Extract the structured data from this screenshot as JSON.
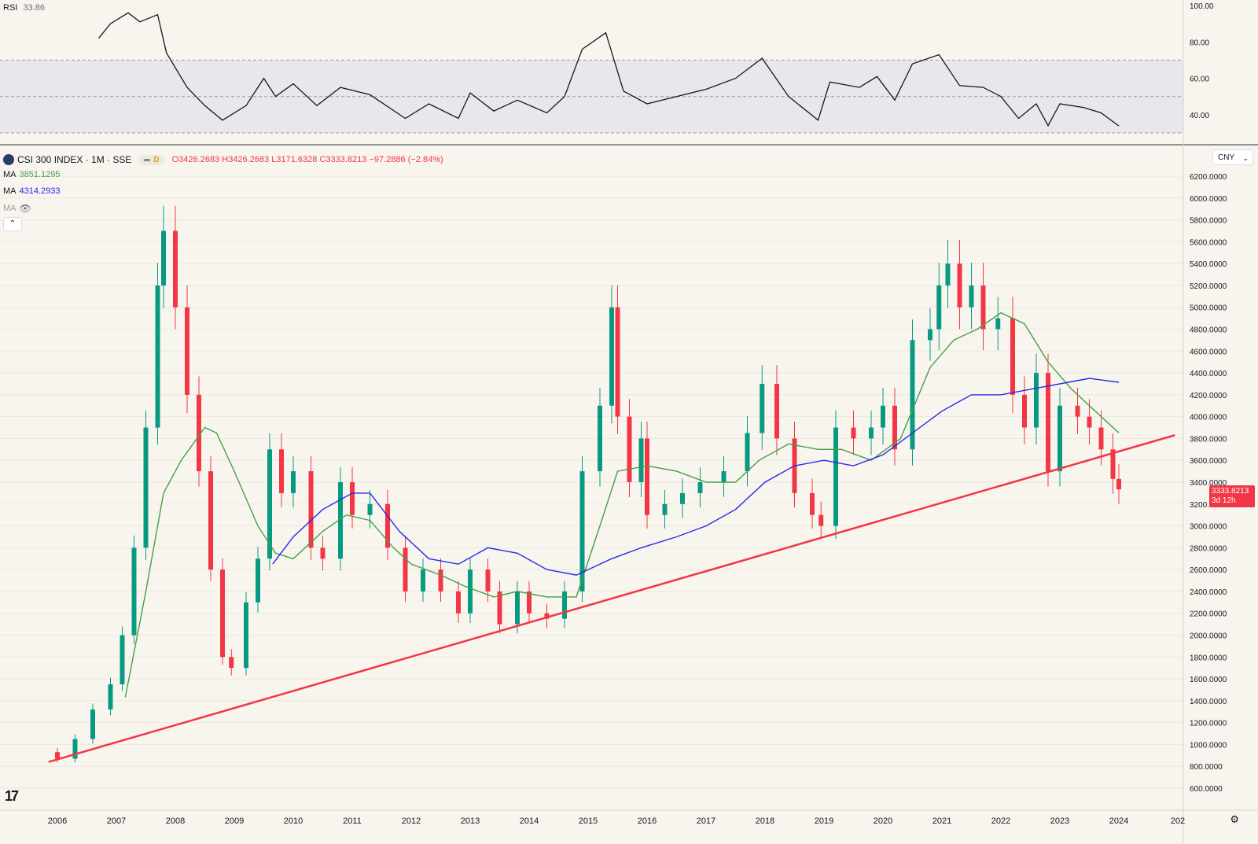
{
  "rsi": {
    "label": "RSI",
    "value": "33.86",
    "ticks": [
      "100.00",
      "80.00",
      "60.00",
      "40.00"
    ],
    "band_color": "#e6e2ec"
  },
  "header": {
    "symbol": "CSI 300 INDEX · 1M · SSE",
    "open": "O3426.2683",
    "high": "H3426.2683",
    "low": "L3171.6328",
    "close": "C3333.8213",
    "change": "−97.2886 (−2.84%)",
    "session_badge": "D"
  },
  "ma": [
    {
      "label": "MA",
      "value": "3851.1295",
      "color": "#43a047"
    },
    {
      "label": "MA",
      "value": "4314.2933",
      "color": "#2929e8"
    },
    {
      "label": "MA",
      "value": "",
      "color": "#9c9c9c"
    }
  ],
  "currency": {
    "label": "CNY"
  },
  "collapse_label": "⌃",
  "price_tag": {
    "value": "3333.8213",
    "countdown": "3d 12h"
  },
  "tv_logo": "17",
  "colors": {
    "up": "#089981",
    "down": "#f23645",
    "trendline": "#f23645",
    "rsi_line": "#131722"
  },
  "chart_data": {
    "type": "candlestick",
    "y_ticks": [
      "6200.0000",
      "6000.0000",
      "5800.0000",
      "5600.0000",
      "5400.0000",
      "5200.0000",
      "5000.0000",
      "4800.0000",
      "4600.0000",
      "4400.0000",
      "4200.0000",
      "4000.0000",
      "3800.0000",
      "3600.0000",
      "3400.0000",
      "3200.0000",
      "3000.0000",
      "2800.0000",
      "2600.0000",
      "2400.0000",
      "2200.0000",
      "2000.0000",
      "1800.0000",
      "1600.0000",
      "1400.0000",
      "1200.0000",
      "1000.0000",
      "800.0000",
      "600.0000"
    ],
    "ylim": [
      600,
      6200
    ],
    "x_ticks": [
      "2006",
      "2007",
      "2008",
      "2009",
      "2010",
      "2011",
      "2012",
      "2013",
      "2014",
      "2015",
      "2016",
      "2017",
      "2018",
      "2019",
      "2020",
      "2021",
      "2022",
      "2023",
      "2024",
      "202"
    ],
    "closes": [
      {
        "year": 2005.8,
        "close": 930
      },
      {
        "year": 2006.0,
        "close": 870
      },
      {
        "year": 2006.3,
        "close": 1050
      },
      {
        "year": 2006.6,
        "close": 1320
      },
      {
        "year": 2006.9,
        "close": 1550
      },
      {
        "year": 2007.1,
        "close": 2000
      },
      {
        "year": 2007.3,
        "close": 2800
      },
      {
        "year": 2007.5,
        "close": 3900
      },
      {
        "year": 2007.7,
        "close": 5200
      },
      {
        "year": 2007.8,
        "close": 5700
      },
      {
        "year": 2008.0,
        "close": 5000
      },
      {
        "year": 2008.2,
        "close": 4200
      },
      {
        "year": 2008.4,
        "close": 3500
      },
      {
        "year": 2008.6,
        "close": 2600
      },
      {
        "year": 2008.8,
        "close": 1800
      },
      {
        "year": 2008.95,
        "close": 1700
      },
      {
        "year": 2009.2,
        "close": 2300
      },
      {
        "year": 2009.4,
        "close": 2700
      },
      {
        "year": 2009.6,
        "close": 3700
      },
      {
        "year": 2009.8,
        "close": 3300
      },
      {
        "year": 2010.0,
        "close": 3500
      },
      {
        "year": 2010.3,
        "close": 2800
      },
      {
        "year": 2010.5,
        "close": 2700
      },
      {
        "year": 2010.8,
        "close": 3400
      },
      {
        "year": 2011.0,
        "close": 3100
      },
      {
        "year": 2011.3,
        "close": 3200
      },
      {
        "year": 2011.6,
        "close": 2800
      },
      {
        "year": 2011.9,
        "close": 2400
      },
      {
        "year": 2012.2,
        "close": 2600
      },
      {
        "year": 2012.5,
        "close": 2400
      },
      {
        "year": 2012.8,
        "close": 2200
      },
      {
        "year": 2013.0,
        "close": 2600
      },
      {
        "year": 2013.3,
        "close": 2400
      },
      {
        "year": 2013.5,
        "close": 2100
      },
      {
        "year": 2013.8,
        "close": 2400
      },
      {
        "year": 2014.0,
        "close": 2200
      },
      {
        "year": 2014.3,
        "close": 2150
      },
      {
        "year": 2014.6,
        "close": 2400
      },
      {
        "year": 2014.9,
        "close": 3500
      },
      {
        "year": 2015.2,
        "close": 4100
      },
      {
        "year": 2015.4,
        "close": 5000
      },
      {
        "year": 2015.5,
        "close": 4000
      },
      {
        "year": 2015.7,
        "close": 3400
      },
      {
        "year": 2015.9,
        "close": 3800
      },
      {
        "year": 2016.0,
        "close": 3100
      },
      {
        "year": 2016.3,
        "close": 3200
      },
      {
        "year": 2016.6,
        "close": 3300
      },
      {
        "year": 2016.9,
        "close": 3400
      },
      {
        "year": 2017.3,
        "close": 3500
      },
      {
        "year": 2017.7,
        "close": 3850
      },
      {
        "year": 2017.95,
        "close": 4300
      },
      {
        "year": 2018.2,
        "close": 3800
      },
      {
        "year": 2018.5,
        "close": 3300
      },
      {
        "year": 2018.8,
        "close": 3100
      },
      {
        "year": 2018.95,
        "close": 3000
      },
      {
        "year": 2019.2,
        "close": 3900
      },
      {
        "year": 2019.5,
        "close": 3800
      },
      {
        "year": 2019.8,
        "close": 3900
      },
      {
        "year": 2020.0,
        "close": 4100
      },
      {
        "year": 2020.2,
        "close": 3700
      },
      {
        "year": 2020.5,
        "close": 4700
      },
      {
        "year": 2020.8,
        "close": 4800
      },
      {
        "year": 2020.95,
        "close": 5200
      },
      {
        "year": 2021.1,
        "close": 5400
      },
      {
        "year": 2021.3,
        "close": 5000
      },
      {
        "year": 2021.5,
        "close": 5200
      },
      {
        "year": 2021.7,
        "close": 4800
      },
      {
        "year": 2021.95,
        "close": 4900
      },
      {
        "year": 2022.2,
        "close": 4200
      },
      {
        "year": 2022.4,
        "close": 3900
      },
      {
        "year": 2022.6,
        "close": 4400
      },
      {
        "year": 2022.8,
        "close": 3500
      },
      {
        "year": 2023.0,
        "close": 4100
      },
      {
        "year": 2023.3,
        "close": 4000
      },
      {
        "year": 2023.5,
        "close": 3900
      },
      {
        "year": 2023.7,
        "close": 3700
      },
      {
        "year": 2023.9,
        "close": 3430
      },
      {
        "year": 2024.0,
        "close": 3334
      }
    ],
    "ma_fast": [
      {
        "year": 2007.15,
        "value": 1430
      },
      {
        "year": 2007.5,
        "value": 2400
      },
      {
        "year": 2007.8,
        "value": 3300
      },
      {
        "year": 2008.1,
        "value": 3600
      },
      {
        "year": 2008.5,
        "value": 3900
      },
      {
        "year": 2008.7,
        "value": 3850
      },
      {
        "year": 2009.0,
        "value": 3500
      },
      {
        "year": 2009.4,
        "value": 3000
      },
      {
        "year": 2009.7,
        "value": 2750
      },
      {
        "year": 2010.0,
        "value": 2700
      },
      {
        "year": 2010.5,
        "value": 2950
      },
      {
        "year": 2010.9,
        "value": 3100
      },
      {
        "year": 2011.3,
        "value": 3050
      },
      {
        "year": 2011.7,
        "value": 2800
      },
      {
        "year": 2012.0,
        "value": 2650
      },
      {
        "year": 2012.5,
        "value": 2550
      },
      {
        "year": 2012.9,
        "value": 2450
      },
      {
        "year": 2013.4,
        "value": 2350
      },
      {
        "year": 2013.8,
        "value": 2400
      },
      {
        "year": 2014.3,
        "value": 2350
      },
      {
        "year": 2014.8,
        "value": 2350
      },
      {
        "year": 2015.2,
        "value": 3000
      },
      {
        "year": 2015.5,
        "value": 3500
      },
      {
        "year": 2016.0,
        "value": 3550
      },
      {
        "year": 2016.5,
        "value": 3500
      },
      {
        "year": 2017.0,
        "value": 3400
      },
      {
        "year": 2017.5,
        "value": 3400
      },
      {
        "year": 2017.9,
        "value": 3600
      },
      {
        "year": 2018.4,
        "value": 3750
      },
      {
        "year": 2018.9,
        "value": 3700
      },
      {
        "year": 2019.3,
        "value": 3700
      },
      {
        "year": 2019.8,
        "value": 3600
      },
      {
        "year": 2020.3,
        "value": 3800
      },
      {
        "year": 2020.8,
        "value": 4450
      },
      {
        "year": 2021.2,
        "value": 4700
      },
      {
        "year": 2021.6,
        "value": 4800
      },
      {
        "year": 2022.0,
        "value": 4950
      },
      {
        "year": 2022.4,
        "value": 4850
      },
      {
        "year": 2022.8,
        "value": 4500
      },
      {
        "year": 2023.2,
        "value": 4250
      },
      {
        "year": 2023.6,
        "value": 4050
      },
      {
        "year": 2024.0,
        "value": 3851
      }
    ],
    "ma_slow": [
      {
        "year": 2009.65,
        "value": 2650
      },
      {
        "year": 2010.0,
        "value": 2900
      },
      {
        "year": 2010.5,
        "value": 3150
      },
      {
        "year": 2011.0,
        "value": 3300
      },
      {
        "year": 2011.3,
        "value": 3300
      },
      {
        "year": 2011.8,
        "value": 2950
      },
      {
        "year": 2012.3,
        "value": 2700
      },
      {
        "year": 2012.8,
        "value": 2650
      },
      {
        "year": 2013.3,
        "value": 2800
      },
      {
        "year": 2013.8,
        "value": 2750
      },
      {
        "year": 2014.3,
        "value": 2600
      },
      {
        "year": 2014.8,
        "value": 2550
      },
      {
        "year": 2015.4,
        "value": 2700
      },
      {
        "year": 2015.9,
        "value": 2800
      },
      {
        "year": 2016.5,
        "value": 2900
      },
      {
        "year": 2017.0,
        "value": 3000
      },
      {
        "year": 2017.5,
        "value": 3150
      },
      {
        "year": 2018.0,
        "value": 3400
      },
      {
        "year": 2018.5,
        "value": 3550
      },
      {
        "year": 2019.0,
        "value": 3600
      },
      {
        "year": 2019.5,
        "value": 3550
      },
      {
        "year": 2020.0,
        "value": 3650
      },
      {
        "year": 2020.5,
        "value": 3850
      },
      {
        "year": 2021.0,
        "value": 4050
      },
      {
        "year": 2021.5,
        "value": 4200
      },
      {
        "year": 2022.0,
        "value": 4200
      },
      {
        "year": 2022.5,
        "value": 4250
      },
      {
        "year": 2023.0,
        "value": 4300
      },
      {
        "year": 2023.5,
        "value": 4350
      },
      {
        "year": 2024.0,
        "value": 4314
      }
    ],
    "trendline": [
      {
        "year": 2005.85,
        "value": 840
      },
      {
        "year": 2024.95,
        "value": 3830
      }
    ],
    "rsi_values": [
      {
        "year": 2006.7,
        "value": 82
      },
      {
        "year": 2006.9,
        "value": 90
      },
      {
        "year": 2007.2,
        "value": 96
      },
      {
        "year": 2007.4,
        "value": 91
      },
      {
        "year": 2007.7,
        "value": 95
      },
      {
        "year": 2007.85,
        "value": 74
      },
      {
        "year": 2008.2,
        "value": 55
      },
      {
        "year": 2008.5,
        "value": 45
      },
      {
        "year": 2008.8,
        "value": 37
      },
      {
        "year": 2009.2,
        "value": 45
      },
      {
        "year": 2009.5,
        "value": 60
      },
      {
        "year": 2009.7,
        "value": 50
      },
      {
        "year": 2010.0,
        "value": 57
      },
      {
        "year": 2010.4,
        "value": 45
      },
      {
        "year": 2010.8,
        "value": 55
      },
      {
        "year": 2011.3,
        "value": 51
      },
      {
        "year": 2011.9,
        "value": 38
      },
      {
        "year": 2012.3,
        "value": 46
      },
      {
        "year": 2012.8,
        "value": 38
      },
      {
        "year": 2013.0,
        "value": 52
      },
      {
        "year": 2013.4,
        "value": 42
      },
      {
        "year": 2013.8,
        "value": 48
      },
      {
        "year": 2014.3,
        "value": 41
      },
      {
        "year": 2014.6,
        "value": 50
      },
      {
        "year": 2014.9,
        "value": 76
      },
      {
        "year": 2015.3,
        "value": 85
      },
      {
        "year": 2015.6,
        "value": 53
      },
      {
        "year": 2016.0,
        "value": 46
      },
      {
        "year": 2016.5,
        "value": 50
      },
      {
        "year": 2017.0,
        "value": 54
      },
      {
        "year": 2017.5,
        "value": 60
      },
      {
        "year": 2017.95,
        "value": 71
      },
      {
        "year": 2018.4,
        "value": 50
      },
      {
        "year": 2018.9,
        "value": 37
      },
      {
        "year": 2019.1,
        "value": 58
      },
      {
        "year": 2019.6,
        "value": 55
      },
      {
        "year": 2019.9,
        "value": 61
      },
      {
        "year": 2020.2,
        "value": 48
      },
      {
        "year": 2020.5,
        "value": 68
      },
      {
        "year": 2020.95,
        "value": 73
      },
      {
        "year": 2021.3,
        "value": 56
      },
      {
        "year": 2021.7,
        "value": 55
      },
      {
        "year": 2022.0,
        "value": 50
      },
      {
        "year": 2022.3,
        "value": 38
      },
      {
        "year": 2022.6,
        "value": 46
      },
      {
        "year": 2022.8,
        "value": 34
      },
      {
        "year": 2023.0,
        "value": 46
      },
      {
        "year": 2023.4,
        "value": 44
      },
      {
        "year": 2023.7,
        "value": 41
      },
      {
        "year": 2024.0,
        "value": 33.86
      }
    ],
    "rsi_band": [
      30,
      70
    ],
    "rsi_midline": 50
  }
}
